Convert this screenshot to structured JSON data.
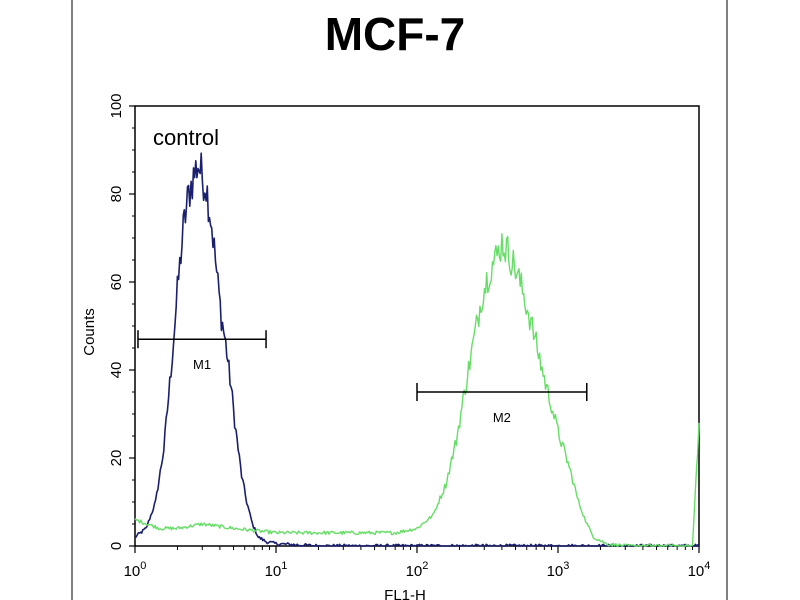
{
  "chart_data": {
    "type": "line",
    "title": "MCF-7",
    "xlabel": "FL1-H",
    "ylabel": "Counts",
    "x_scale": "log",
    "xlim": [
      1,
      10000
    ],
    "ylim": [
      0,
      100
    ],
    "x_ticks": [
      {
        "base": "10",
        "exp": "0"
      },
      {
        "base": "10",
        "exp": "1"
      },
      {
        "base": "10",
        "exp": "2"
      },
      {
        "base": "10",
        "exp": "3"
      },
      {
        "base": "10",
        "exp": "4"
      }
    ],
    "y_ticks": [
      "0",
      "20",
      "40",
      "60",
      "80",
      "100"
    ],
    "annotations": {
      "control_label": "control",
      "markers": [
        {
          "label": "M1",
          "x_start": 1.05,
          "x_end": 8.5,
          "y": 47
        },
        {
          "label": "M2",
          "x_start": 100,
          "x_end": 1600,
          "y": 35
        }
      ]
    },
    "series": [
      {
        "color": "#1a1f6e",
        "points": [
          [
            1.0,
            2
          ],
          [
            1.2,
            4
          ],
          [
            1.4,
            10
          ],
          [
            1.6,
            22
          ],
          [
            1.8,
            40
          ],
          [
            2.0,
            58
          ],
          [
            2.2,
            72
          ],
          [
            2.4,
            80
          ],
          [
            2.6,
            84
          ],
          [
            2.8,
            87
          ],
          [
            3.0,
            84
          ],
          [
            3.2,
            82
          ],
          [
            3.5,
            73
          ],
          [
            3.8,
            62
          ],
          [
            4.1,
            52
          ],
          [
            4.4,
            46
          ],
          [
            4.8,
            36
          ],
          [
            5.2,
            26
          ],
          [
            5.7,
            16
          ],
          [
            6.2,
            10
          ],
          [
            6.8,
            5
          ],
          [
            7.5,
            2
          ],
          [
            8.5,
            1
          ],
          [
            10,
            0.5
          ],
          [
            20,
            0
          ],
          [
            10000,
            0
          ]
        ]
      },
      {
        "color": "#66dd66",
        "points": [
          [
            1.0,
            6
          ],
          [
            1.5,
            4
          ],
          [
            2,
            4
          ],
          [
            3,
            5
          ],
          [
            5,
            4
          ],
          [
            10,
            3
          ],
          [
            20,
            3
          ],
          [
            40,
            3
          ],
          [
            70,
            3
          ],
          [
            100,
            4
          ],
          [
            130,
            7
          ],
          [
            160,
            14
          ],
          [
            190,
            24
          ],
          [
            220,
            36
          ],
          [
            250,
            46
          ],
          [
            290,
            57
          ],
          [
            330,
            63
          ],
          [
            370,
            66
          ],
          [
            400,
            69
          ],
          [
            440,
            67
          ],
          [
            500,
            63
          ],
          [
            560,
            58
          ],
          [
            630,
            52
          ],
          [
            700,
            46
          ],
          [
            800,
            38
          ],
          [
            900,
            32
          ],
          [
            1000,
            26
          ],
          [
            1200,
            18
          ],
          [
            1400,
            10
          ],
          [
            1600,
            5
          ],
          [
            1800,
            2
          ],
          [
            2200,
            0.5
          ],
          [
            3000,
            0
          ],
          [
            9000,
            0
          ],
          [
            10000,
            28
          ]
        ]
      }
    ],
    "grid": false,
    "legend": "none"
  }
}
